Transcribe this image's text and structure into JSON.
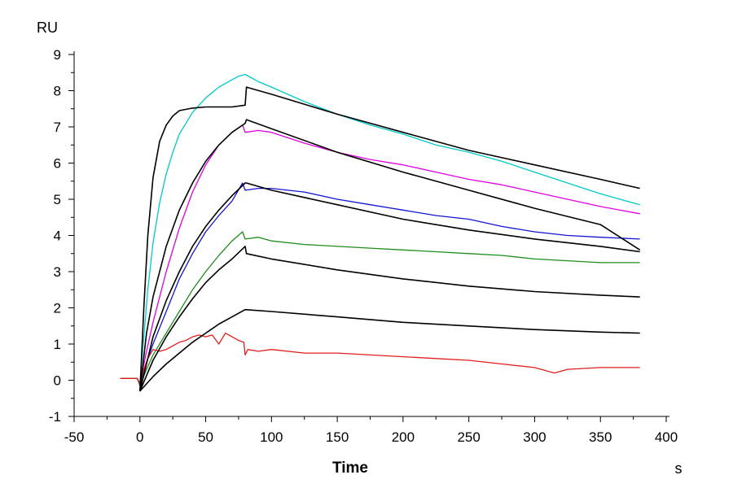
{
  "chart_data": {
    "type": "line",
    "title": "",
    "xlabel": "Time",
    "x_unit": "s",
    "ylabel": "RU",
    "xlim": [
      -50,
      400
    ],
    "ylim": [
      -1,
      9
    ],
    "x_ticks": [
      -50,
      0,
      50,
      100,
      150,
      200,
      250,
      300,
      350,
      400
    ],
    "y_ticks": [
      -1,
      0,
      1,
      2,
      3,
      4,
      5,
      6,
      7,
      8,
      9
    ],
    "grid": false,
    "legend": "none",
    "series": [
      {
        "color": "#00c8c8",
        "kind": "measured",
        "points": [
          [
            -15,
            0.05
          ],
          [
            -2,
            0.05
          ],
          [
            0,
            -0.1
          ],
          [
            3,
            1.2
          ],
          [
            6,
            2.5
          ],
          [
            10,
            3.8
          ],
          [
            15,
            4.9
          ],
          [
            20,
            5.7
          ],
          [
            25,
            6.3
          ],
          [
            30,
            6.8
          ],
          [
            40,
            7.4
          ],
          [
            50,
            7.8
          ],
          [
            60,
            8.1
          ],
          [
            70,
            8.3
          ],
          [
            75,
            8.4
          ],
          [
            80,
            8.45
          ],
          [
            90,
            8.25
          ],
          [
            100,
            8.1
          ],
          [
            125,
            7.7
          ],
          [
            150,
            7.35
          ],
          [
            175,
            7.05
          ],
          [
            200,
            6.8
          ],
          [
            225,
            6.5
          ],
          [
            250,
            6.3
          ],
          [
            275,
            6.05
          ],
          [
            300,
            5.75
          ],
          [
            325,
            5.45
          ],
          [
            350,
            5.15
          ],
          [
            380,
            4.85
          ]
        ]
      },
      {
        "color": "#e000e0",
        "kind": "measured",
        "points": [
          [
            -15,
            0.05
          ],
          [
            -2,
            0.05
          ],
          [
            0,
            -0.1
          ],
          [
            5,
            0.8
          ],
          [
            10,
            1.6
          ],
          [
            20,
            3.0
          ],
          [
            30,
            4.2
          ],
          [
            40,
            5.2
          ],
          [
            50,
            5.95
          ],
          [
            60,
            6.5
          ],
          [
            70,
            6.85
          ],
          [
            78,
            7.05
          ],
          [
            80,
            6.85
          ],
          [
            90,
            6.9
          ],
          [
            100,
            6.85
          ],
          [
            125,
            6.55
          ],
          [
            150,
            6.3
          ],
          [
            175,
            6.1
          ],
          [
            200,
            5.95
          ],
          [
            225,
            5.75
          ],
          [
            250,
            5.55
          ],
          [
            275,
            5.4
          ],
          [
            300,
            5.2
          ],
          [
            325,
            5.0
          ],
          [
            350,
            4.8
          ],
          [
            380,
            4.6
          ]
        ]
      },
      {
        "color": "#1414d2",
        "kind": "measured",
        "points": [
          [
            -15,
            0.05
          ],
          [
            -2,
            0.05
          ],
          [
            0,
            -0.1
          ],
          [
            5,
            0.5
          ],
          [
            10,
            1.0
          ],
          [
            20,
            1.9
          ],
          [
            30,
            2.8
          ],
          [
            40,
            3.5
          ],
          [
            50,
            4.1
          ],
          [
            60,
            4.55
          ],
          [
            70,
            4.95
          ],
          [
            78,
            5.45
          ],
          [
            80,
            5.25
          ],
          [
            90,
            5.3
          ],
          [
            100,
            5.3
          ],
          [
            125,
            5.2
          ],
          [
            150,
            5.0
          ],
          [
            175,
            4.85
          ],
          [
            200,
            4.7
          ],
          [
            225,
            4.55
          ],
          [
            250,
            4.45
          ],
          [
            275,
            4.25
          ],
          [
            300,
            4.1
          ],
          [
            325,
            4.0
          ],
          [
            350,
            3.95
          ],
          [
            380,
            3.9
          ]
        ]
      },
      {
        "color": "#1e8c1e",
        "kind": "measured",
        "points": [
          [
            -15,
            0.05
          ],
          [
            -2,
            0.05
          ],
          [
            0,
            -0.15
          ],
          [
            5,
            0.3
          ],
          [
            10,
            0.7
          ],
          [
            20,
            1.3
          ],
          [
            30,
            1.9
          ],
          [
            40,
            2.5
          ],
          [
            50,
            3.0
          ],
          [
            60,
            3.45
          ],
          [
            70,
            3.85
          ],
          [
            78,
            4.1
          ],
          [
            80,
            3.9
          ],
          [
            90,
            3.95
          ],
          [
            100,
            3.85
          ],
          [
            125,
            3.75
          ],
          [
            150,
            3.7
          ],
          [
            175,
            3.65
          ],
          [
            200,
            3.6
          ],
          [
            225,
            3.55
          ],
          [
            250,
            3.5
          ],
          [
            275,
            3.45
          ],
          [
            300,
            3.35
          ],
          [
            325,
            3.3
          ],
          [
            350,
            3.25
          ],
          [
            380,
            3.25
          ]
        ]
      },
      {
        "color": "#e01e1e",
        "kind": "measured",
        "points": [
          [
            -15,
            0.05
          ],
          [
            -2,
            0.05
          ],
          [
            0,
            -0.1
          ],
          [
            3,
            0.3
          ],
          [
            6,
            0.6
          ],
          [
            10,
            0.85
          ],
          [
            15,
            0.8
          ],
          [
            20,
            0.85
          ],
          [
            25,
            0.95
          ],
          [
            30,
            1.05
          ],
          [
            35,
            1.1
          ],
          [
            40,
            1.2
          ],
          [
            45,
            1.25
          ],
          [
            50,
            1.2
          ],
          [
            55,
            1.25
          ],
          [
            60,
            1.0
          ],
          [
            65,
            1.3
          ],
          [
            70,
            1.2
          ],
          [
            75,
            1.1
          ],
          [
            79,
            1.05
          ],
          [
            80,
            0.7
          ],
          [
            82,
            0.85
          ],
          [
            90,
            0.8
          ],
          [
            100,
            0.85
          ],
          [
            125,
            0.75
          ],
          [
            150,
            0.75
          ],
          [
            175,
            0.7
          ],
          [
            200,
            0.65
          ],
          [
            225,
            0.6
          ],
          [
            250,
            0.55
          ],
          [
            275,
            0.45
          ],
          [
            300,
            0.35
          ],
          [
            315,
            0.2
          ],
          [
            325,
            0.3
          ],
          [
            350,
            0.35
          ],
          [
            380,
            0.35
          ]
        ]
      },
      {
        "color": "#000000",
        "kind": "fit",
        "points": [
          [
            0,
            -0.3
          ],
          [
            3,
            2.0
          ],
          [
            6,
            4.0
          ],
          [
            10,
            5.6
          ],
          [
            15,
            6.6
          ],
          [
            20,
            7.05
          ],
          [
            25,
            7.3
          ],
          [
            30,
            7.45
          ],
          [
            40,
            7.52
          ],
          [
            50,
            7.55
          ],
          [
            60,
            7.55
          ],
          [
            70,
            7.55
          ],
          [
            80,
            7.6
          ],
          [
            81,
            8.1
          ],
          [
            100,
            7.9
          ],
          [
            150,
            7.35
          ],
          [
            200,
            6.85
          ],
          [
            250,
            6.35
          ],
          [
            300,
            5.95
          ],
          [
            350,
            5.55
          ],
          [
            380,
            5.3
          ]
        ]
      },
      {
        "color": "#000000",
        "kind": "fit",
        "points": [
          [
            0,
            -0.3
          ],
          [
            5,
            1.3
          ],
          [
            10,
            2.3
          ],
          [
            20,
            3.7
          ],
          [
            30,
            4.7
          ],
          [
            40,
            5.45
          ],
          [
            50,
            6.05
          ],
          [
            60,
            6.5
          ],
          [
            70,
            6.85
          ],
          [
            80,
            7.1
          ],
          [
            81,
            7.2
          ],
          [
            100,
            6.95
          ],
          [
            150,
            6.3
          ],
          [
            200,
            5.75
          ],
          [
            250,
            5.25
          ],
          [
            300,
            4.75
          ],
          [
            350,
            4.3
          ],
          [
            380,
            3.6
          ]
        ]
      },
      {
        "color": "#000000",
        "kind": "fit",
        "points": [
          [
            0,
            -0.3
          ],
          [
            10,
            1.2
          ],
          [
            20,
            2.2
          ],
          [
            30,
            3.0
          ],
          [
            40,
            3.7
          ],
          [
            50,
            4.25
          ],
          [
            60,
            4.7
          ],
          [
            70,
            5.1
          ],
          [
            80,
            5.45
          ],
          [
            81,
            5.45
          ],
          [
            100,
            5.25
          ],
          [
            150,
            4.85
          ],
          [
            200,
            4.45
          ],
          [
            250,
            4.15
          ],
          [
            300,
            3.9
          ],
          [
            350,
            3.7
          ],
          [
            380,
            3.55
          ]
        ]
      },
      {
        "color": "#000000",
        "kind": "fit",
        "points": [
          [
            0,
            -0.3
          ],
          [
            10,
            0.55
          ],
          [
            20,
            1.2
          ],
          [
            30,
            1.75
          ],
          [
            40,
            2.25
          ],
          [
            50,
            2.7
          ],
          [
            60,
            3.05
          ],
          [
            70,
            3.35
          ],
          [
            80,
            3.7
          ],
          [
            81,
            3.5
          ],
          [
            100,
            3.35
          ],
          [
            150,
            3.05
          ],
          [
            200,
            2.8
          ],
          [
            250,
            2.6
          ],
          [
            300,
            2.45
          ],
          [
            350,
            2.35
          ],
          [
            380,
            2.3
          ]
        ]
      },
      {
        "color": "#000000",
        "kind": "fit",
        "points": [
          [
            0,
            -0.3
          ],
          [
            10,
            0.1
          ],
          [
            20,
            0.45
          ],
          [
            30,
            0.75
          ],
          [
            40,
            1.05
          ],
          [
            50,
            1.3
          ],
          [
            60,
            1.55
          ],
          [
            70,
            1.75
          ],
          [
            80,
            1.95
          ],
          [
            100,
            1.9
          ],
          [
            150,
            1.75
          ],
          [
            200,
            1.6
          ],
          [
            250,
            1.5
          ],
          [
            300,
            1.4
          ],
          [
            350,
            1.33
          ],
          [
            380,
            1.3
          ]
        ]
      }
    ]
  }
}
